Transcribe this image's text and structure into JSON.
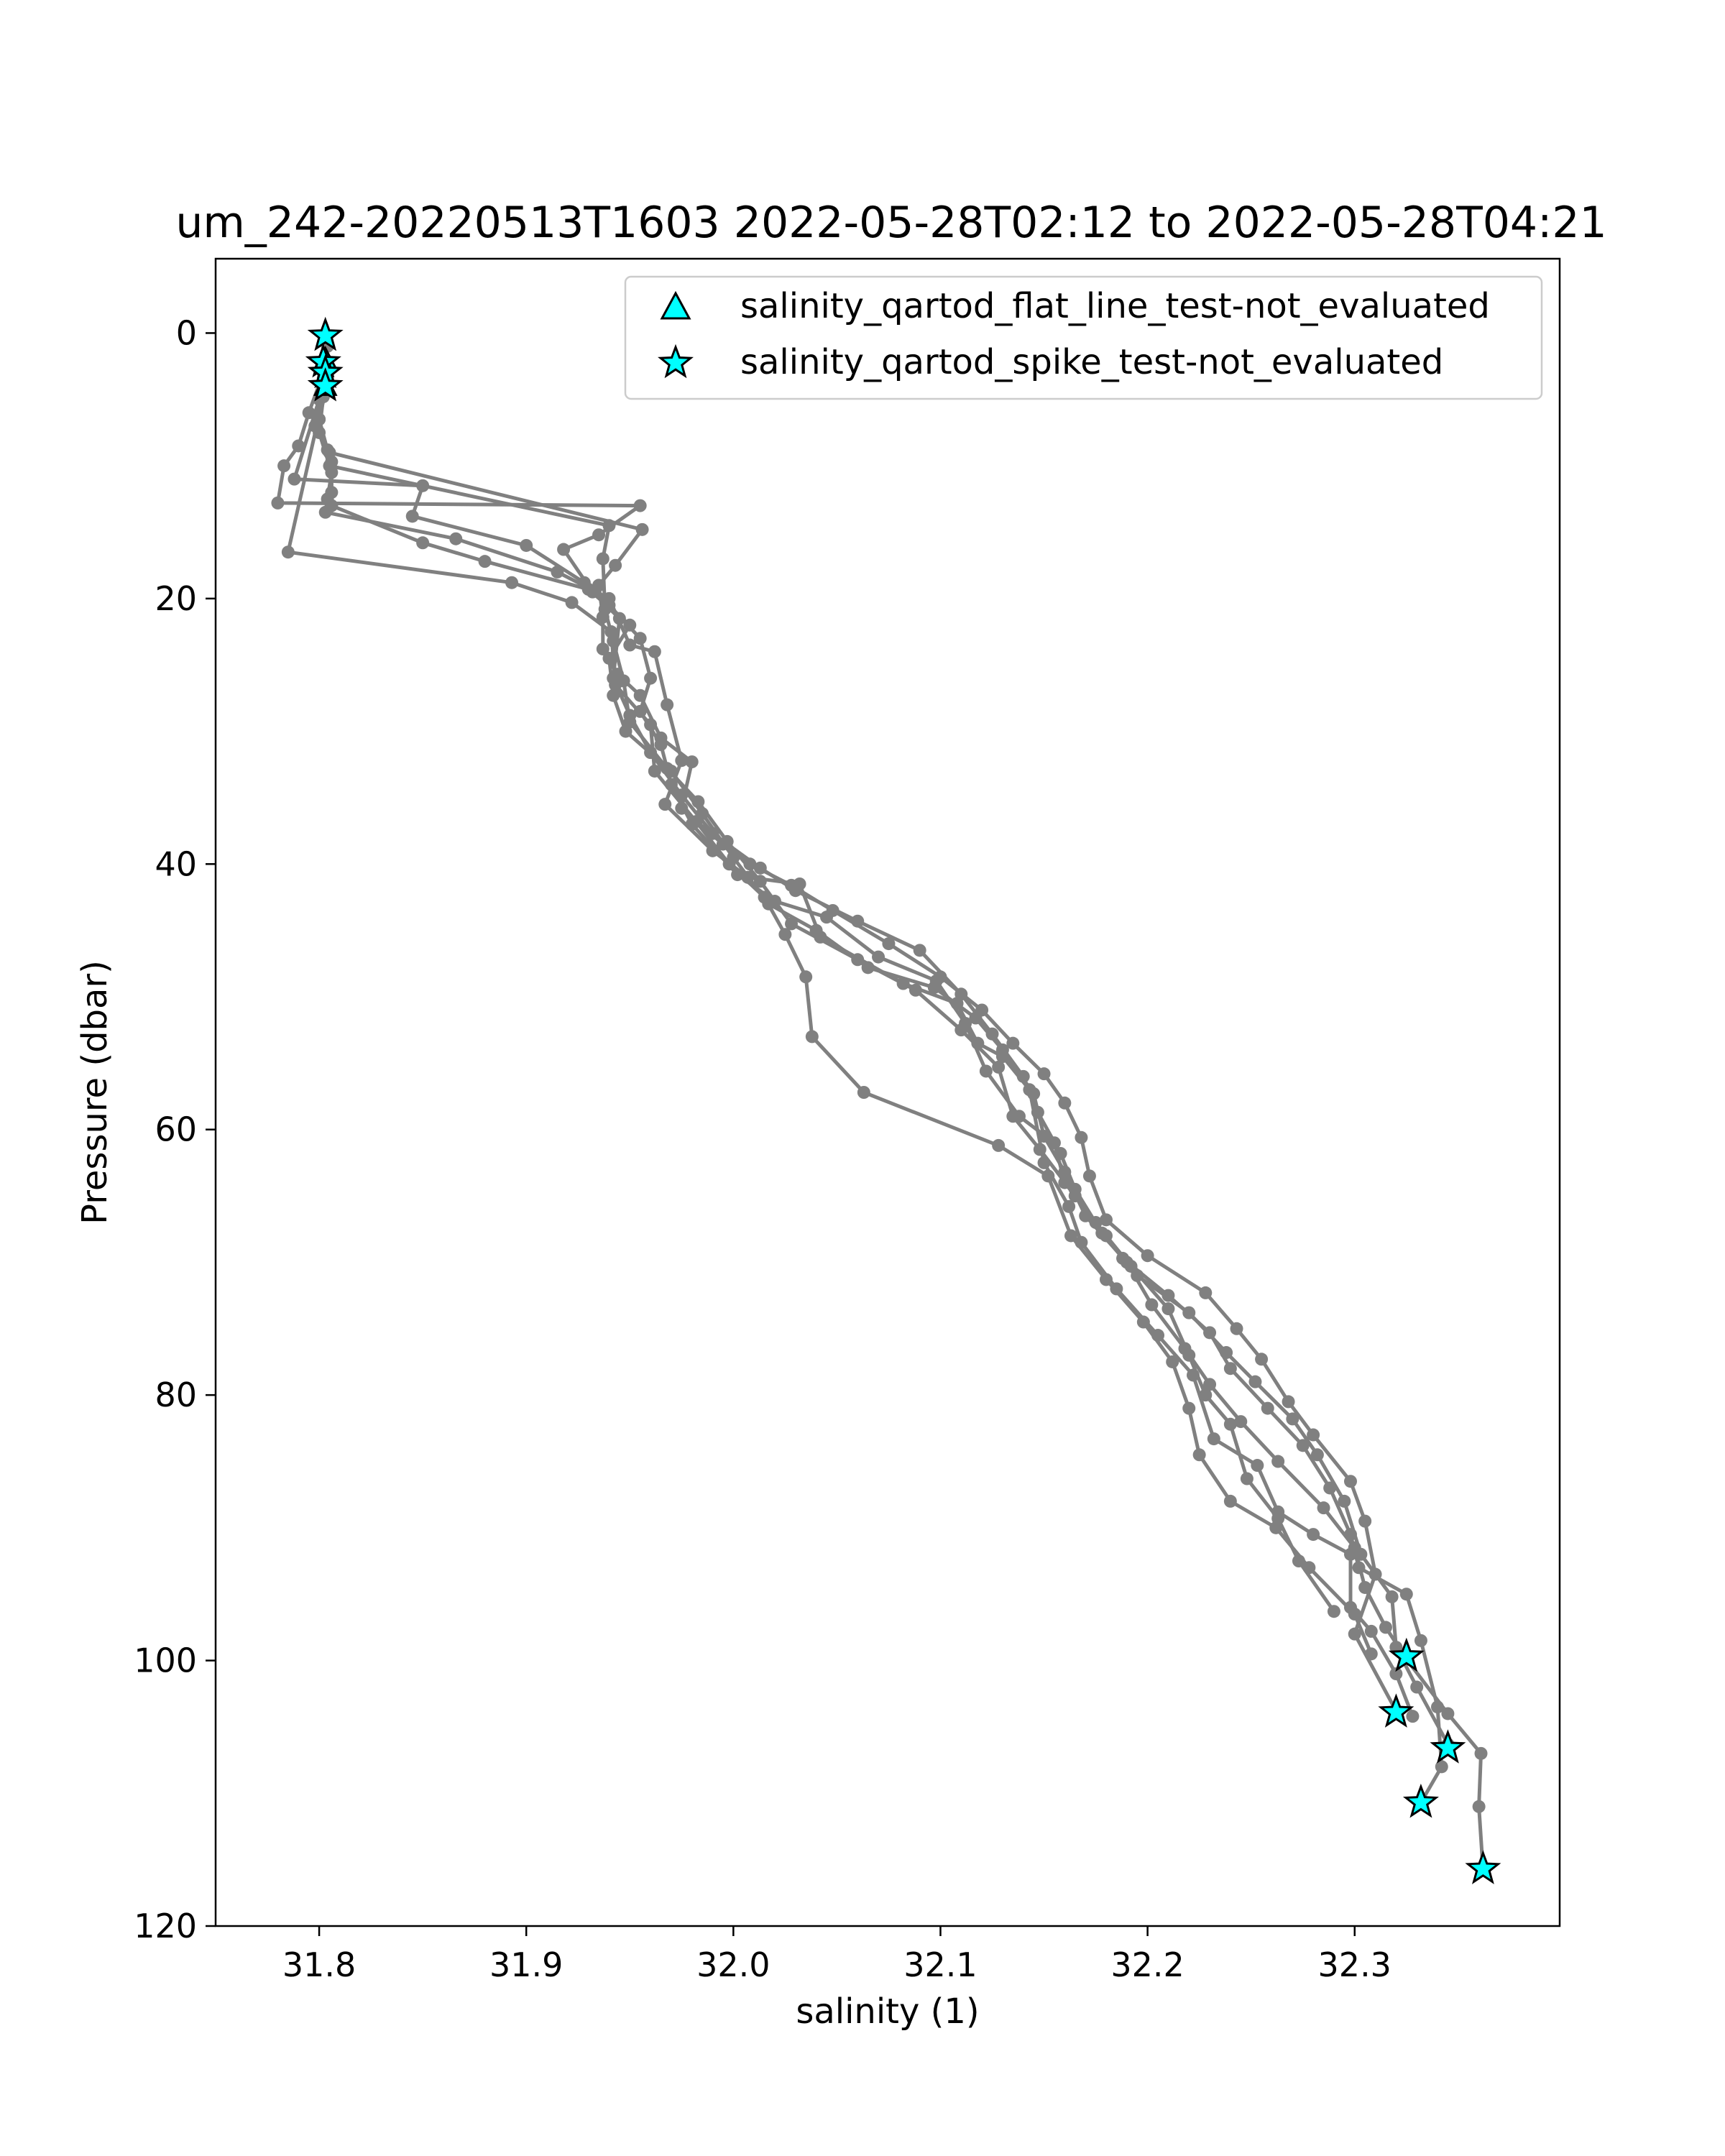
{
  "chart_data": {
    "type": "line",
    "title": "um_242-20220513T1603 2022-05-28T02:12 to 2022-05-28T04:21",
    "xlabel": "salinity (1)",
    "ylabel": "Pressure (dbar)",
    "xlim": [
      31.75,
      32.399
    ],
    "ylim": [
      120,
      -5.6
    ],
    "y_inverted": true,
    "x_ticks": [
      "31.8",
      "31.9",
      "32.0",
      "32.1",
      "32.2",
      "32.3"
    ],
    "y_ticks": [
      "0",
      "20",
      "40",
      "60",
      "80",
      "100",
      "120"
    ],
    "grid": false,
    "legend_position": "upper-right",
    "colors": {
      "profile": "#808080",
      "flag_fill": "#00ffff",
      "flag_edge": "#000000"
    },
    "series": [
      {
        "points": [
          [
            31.803,
            0.2
          ],
          [
            31.803,
            2.2
          ],
          [
            31.802,
            3.4
          ],
          [
            31.803,
            4.4
          ],
          [
            31.8,
            6.5
          ],
          [
            31.804,
            8.8
          ],
          [
            31.806,
            9.7
          ],
          [
            31.806,
            12.0
          ],
          [
            31.806,
            13.0
          ],
          [
            31.85,
            15.8
          ],
          [
            31.88,
            17.2
          ],
          [
            31.93,
            19.3
          ],
          [
            31.95,
            22.0
          ],
          [
            31.94,
            24.5
          ],
          [
            31.942,
            27.3
          ],
          [
            31.948,
            30.0
          ],
          [
            31.97,
            33.0
          ],
          [
            31.985,
            36.2
          ],
          [
            32.0,
            39.5
          ],
          [
            32.017,
            43.0
          ],
          [
            32.04,
            45.0
          ],
          [
            32.065,
            47.8
          ],
          [
            32.097,
            49.3
          ],
          [
            32.117,
            51.6
          ],
          [
            32.13,
            54.0
          ],
          [
            32.145,
            57.3
          ],
          [
            32.15,
            60.5
          ],
          [
            32.16,
            63.2
          ],
          [
            32.17,
            66.5
          ],
          [
            32.19,
            70.0
          ],
          [
            32.202,
            73.2
          ],
          [
            32.218,
            76.5
          ],
          [
            32.23,
            79.2
          ],
          [
            32.245,
            82.0
          ],
          [
            32.263,
            85.0
          ],
          [
            32.285,
            88.5
          ],
          [
            32.3,
            91.5
          ],
          [
            32.305,
            94.5
          ],
          [
            32.315,
            97.5
          ],
          [
            32.325,
            99.9
          ],
          [
            32.345,
            104.0
          ],
          [
            32.361,
            107.0
          ],
          [
            32.36,
            111.0
          ],
          [
            32.362,
            115.8
          ]
        ]
      },
      {
        "points": [
          [
            31.802,
            3.0
          ],
          [
            31.795,
            6.0
          ],
          [
            31.79,
            8.5
          ],
          [
            31.783,
            10.0
          ],
          [
            31.78,
            12.8
          ],
          [
            31.955,
            13.0
          ],
          [
            31.935,
            15.2
          ],
          [
            31.918,
            16.3
          ],
          [
            31.932,
            19.5
          ],
          [
            31.945,
            21.5
          ],
          [
            31.942,
            26.0
          ],
          [
            31.95,
            28.8
          ],
          [
            31.96,
            31.6
          ],
          [
            31.975,
            34.8
          ],
          [
            31.99,
            37.7
          ],
          [
            32.013,
            40.3
          ],
          [
            32.03,
            42.0
          ],
          [
            32.06,
            44.3
          ],
          [
            32.09,
            46.5
          ],
          [
            32.11,
            49.8
          ],
          [
            32.125,
            52.8
          ],
          [
            32.14,
            56.0
          ],
          [
            32.147,
            58.7
          ],
          [
            32.158,
            61.8
          ],
          [
            32.165,
            64.5
          ],
          [
            32.178,
            67.8
          ],
          [
            32.195,
            71.0
          ],
          [
            32.22,
            73.8
          ],
          [
            32.238,
            76.8
          ],
          [
            32.252,
            79.0
          ],
          [
            32.27,
            81.8
          ],
          [
            32.282,
            84.5
          ],
          [
            32.295,
            88.0
          ],
          [
            32.303,
            92.0
          ],
          [
            32.318,
            95.2
          ],
          [
            32.32,
            99.0
          ],
          [
            32.33,
            102.0
          ],
          [
            32.345,
            106.3
          ]
        ]
      },
      {
        "points": [
          [
            31.802,
            4.0
          ],
          [
            31.798,
            7.0
          ],
          [
            31.805,
            9.0
          ],
          [
            31.956,
            14.8
          ],
          [
            31.943,
            17.5
          ],
          [
            31.935,
            19.0
          ],
          [
            31.937,
            21.4
          ],
          [
            31.937,
            23.8
          ],
          [
            31.944,
            25.7
          ],
          [
            31.955,
            27.3
          ],
          [
            31.965,
            30.5
          ],
          [
            31.98,
            32.3
          ],
          [
            31.975,
            35.8
          ],
          [
            31.995,
            38.5
          ],
          [
            32.008,
            40.0
          ],
          [
            32.028,
            41.6
          ],
          [
            32.048,
            43.5
          ],
          [
            32.075,
            46.0
          ],
          [
            32.1,
            48.5
          ],
          [
            32.12,
            51.0
          ],
          [
            32.135,
            53.5
          ],
          [
            32.15,
            55.8
          ],
          [
            32.16,
            58.0
          ],
          [
            32.168,
            60.6
          ],
          [
            32.172,
            63.5
          ],
          [
            32.18,
            66.8
          ],
          [
            32.2,
            69.5
          ],
          [
            32.228,
            72.3
          ],
          [
            32.243,
            75.0
          ],
          [
            32.255,
            77.3
          ],
          [
            32.268,
            80.5
          ],
          [
            32.28,
            83.0
          ],
          [
            32.298,
            86.5
          ],
          [
            32.305,
            89.5
          ],
          [
            32.31,
            93.5
          ],
          [
            32.3,
            98.0
          ],
          [
            32.32,
            103.8
          ]
        ]
      },
      {
        "points": [
          [
            31.803,
            2.5
          ],
          [
            31.8,
            5.0
          ],
          [
            31.788,
            11.0
          ],
          [
            31.85,
            11.5
          ],
          [
            31.845,
            13.8
          ],
          [
            31.9,
            16.0
          ],
          [
            31.928,
            18.8
          ],
          [
            31.94,
            20.5
          ],
          [
            31.955,
            23.0
          ],
          [
            31.96,
            26.0
          ],
          [
            31.955,
            28.5
          ],
          [
            31.965,
            31.0
          ],
          [
            31.97,
            34.0
          ],
          [
            31.98,
            37.0
          ],
          [
            32.002,
            40.8
          ],
          [
            32.02,
            42.8
          ],
          [
            32.045,
            44.0
          ],
          [
            32.07,
            47.0
          ],
          [
            32.098,
            48.8
          ],
          [
            32.112,
            52.0
          ],
          [
            32.122,
            55.6
          ],
          [
            32.138,
            59.0
          ],
          [
            32.155,
            61.0
          ],
          [
            32.16,
            64.0
          ],
          [
            32.175,
            67.0
          ],
          [
            32.188,
            69.7
          ],
          [
            32.21,
            72.5
          ],
          [
            32.23,
            75.3
          ],
          [
            32.24,
            78.0
          ],
          [
            32.258,
            81.0
          ],
          [
            32.275,
            83.8
          ],
          [
            32.288,
            87.0
          ],
          [
            32.298,
            90.5
          ],
          [
            32.302,
            93.0
          ],
          [
            32.325,
            95.0
          ],
          [
            32.332,
            98.5
          ],
          [
            32.34,
            103.5
          ],
          [
            32.342,
            108.0
          ],
          [
            32.332,
            110.7
          ]
        ]
      },
      {
        "points": [
          [
            31.803,
            3.5
          ],
          [
            31.8,
            7.5
          ],
          [
            31.806,
            10.5
          ],
          [
            31.804,
            12.5
          ],
          [
            31.803,
            13.5
          ],
          [
            31.866,
            15.5
          ],
          [
            31.915,
            18.0
          ],
          [
            31.94,
            20.0
          ],
          [
            31.95,
            23.5
          ],
          [
            31.962,
            24.0
          ],
          [
            31.968,
            28.0
          ],
          [
            31.975,
            32.2
          ],
          [
            31.967,
            35.5
          ],
          [
            31.99,
            39.0
          ],
          [
            32.007,
            41.0
          ],
          [
            32.032,
            41.5
          ],
          [
            32.042,
            45.5
          ],
          [
            32.082,
            49.0
          ],
          [
            32.108,
            50.5
          ],
          [
            32.118,
            53.5
          ],
          [
            32.13,
            54.5
          ],
          [
            32.143,
            57.0
          ],
          [
            32.15,
            62.5
          ],
          [
            32.162,
            65.8
          ],
          [
            32.168,
            68.5
          ],
          [
            32.185,
            72.0
          ],
          [
            32.205,
            75.5
          ],
          [
            32.222,
            78.5
          ],
          [
            32.232,
            83.3
          ],
          [
            32.253,
            85.3
          ],
          [
            32.263,
            88.8
          ],
          [
            32.28,
            90.5
          ],
          [
            32.298,
            92.0
          ],
          [
            32.298,
            96.0
          ],
          [
            32.308,
            97.8
          ],
          [
            32.32,
            101.0
          ],
          [
            32.328,
            104.2
          ]
        ]
      },
      {
        "points": [
          [
            31.804,
            1.0
          ],
          [
            31.802,
            4.8
          ],
          [
            31.785,
            16.5
          ],
          [
            31.893,
            18.8
          ],
          [
            31.922,
            20.3
          ],
          [
            31.941,
            22.5
          ],
          [
            31.943,
            26.5
          ],
          [
            31.96,
            29.5
          ],
          [
            31.962,
            33.0
          ],
          [
            31.982,
            36.8
          ],
          [
            31.998,
            40.0
          ],
          [
            32.015,
            42.5
          ],
          [
            32.025,
            45.3
          ],
          [
            32.035,
            48.5
          ],
          [
            32.038,
            53.0
          ],
          [
            32.063,
            57.2
          ],
          [
            32.128,
            61.2
          ],
          [
            32.152,
            63.5
          ],
          [
            32.163,
            68.0
          ],
          [
            32.18,
            71.3
          ],
          [
            32.198,
            74.5
          ],
          [
            32.212,
            77.5
          ],
          [
            32.22,
            81.0
          ],
          [
            32.225,
            84.5
          ],
          [
            32.24,
            88.0
          ],
          [
            32.262,
            90.0
          ],
          [
            32.278,
            93.0
          ],
          [
            32.3,
            96.5
          ],
          [
            32.308,
            99.5
          ]
        ]
      },
      {
        "points": [
          [
            31.803,
            2.0
          ],
          [
            31.8,
            6.5
          ],
          [
            31.805,
            10.0
          ],
          [
            31.94,
            14.5
          ],
          [
            31.937,
            17.0
          ],
          [
            31.938,
            20.8
          ],
          [
            31.942,
            23.2
          ],
          [
            31.947,
            26.2
          ],
          [
            31.95,
            29.3
          ],
          [
            31.968,
            32.8
          ],
          [
            31.983,
            35.3
          ],
          [
            31.997,
            38.3
          ],
          [
            32.013,
            41.3
          ],
          [
            32.028,
            44.5
          ],
          [
            32.06,
            47.2
          ],
          [
            32.088,
            49.5
          ],
          [
            32.11,
            52.5
          ],
          [
            32.128,
            55.3
          ],
          [
            32.135,
            59.0
          ],
          [
            32.148,
            61.5
          ],
          [
            32.165,
            65.0
          ],
          [
            32.18,
            68.0
          ],
          [
            32.192,
            70.3
          ],
          [
            32.21,
            73.5
          ],
          [
            32.22,
            77.0
          ],
          [
            32.228,
            80.0
          ],
          [
            32.24,
            82.2
          ],
          [
            32.248,
            86.3
          ],
          [
            32.263,
            89.3
          ],
          [
            32.273,
            92.5
          ],
          [
            32.29,
            96.3
          ]
        ]
      }
    ],
    "markers": {
      "salinity_qartod_flat_line_test-not_evaluated": [
        [
          31.803,
          2.0
        ],
        [
          31.803,
          4.0
        ]
      ],
      "salinity_qartod_spike_test-not_evaluated": [
        [
          31.803,
          0.2
        ],
        [
          31.802,
          2.2
        ],
        [
          31.803,
          3.0
        ],
        [
          31.803,
          4.0
        ],
        [
          32.325,
          99.7
        ],
        [
          32.32,
          103.9
        ],
        [
          32.345,
          106.6
        ],
        [
          32.332,
          110.7
        ],
        [
          32.362,
          115.7
        ]
      ]
    },
    "legend": [
      "salinity_qartod_flat_line_test-not_evaluated",
      "salinity_qartod_spike_test-not_evaluated"
    ]
  }
}
